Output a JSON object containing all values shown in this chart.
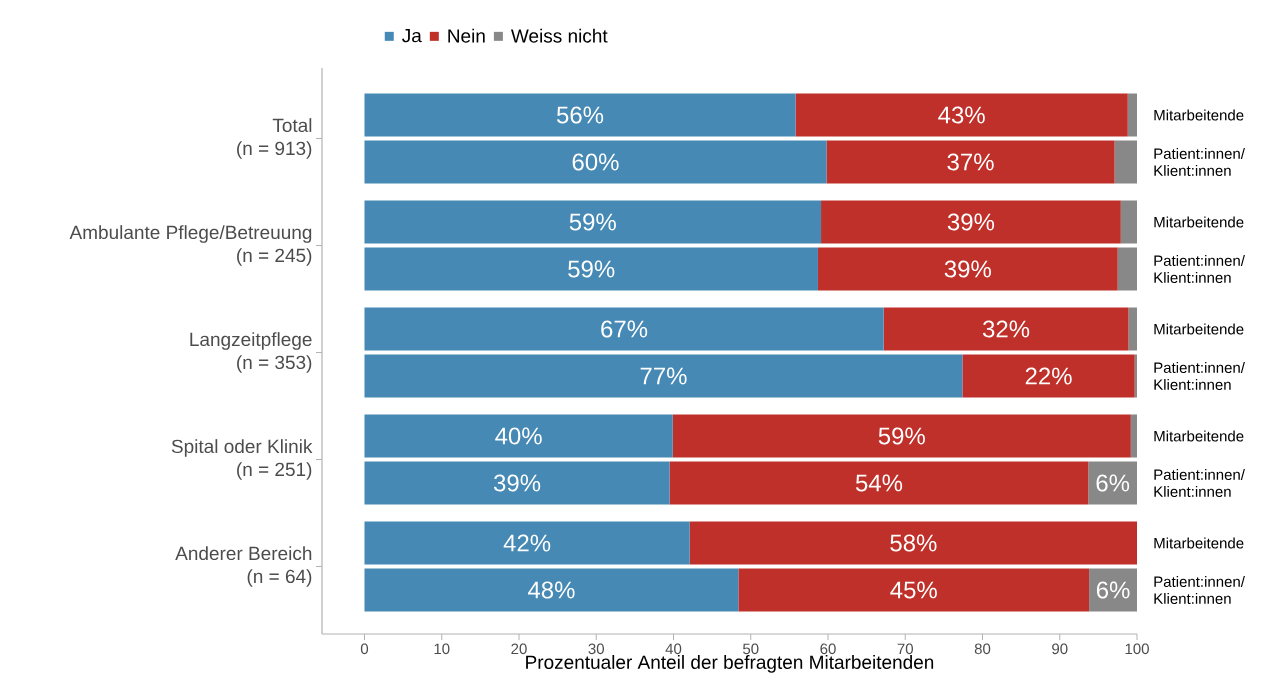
{
  "chart_data": {
    "type": "bar",
    "orientation": "horizontal",
    "stacked": true,
    "categories": [
      "Mitarbeitende",
      "Patient:innen/ Klient:innen",
      "Mitarbeitende",
      "Patient:innen/ Klient:innen",
      "Mitarbeitende",
      "Patient:innen/ Klient:innen",
      "Mitarbeitende",
      "Patient:innen/ Klient:innen",
      "Mitarbeitende",
      "Patient:innen/ Klient:innen"
    ],
    "series": [
      {
        "name": "Ja",
        "color": "#4689b4",
        "values": [
          55.8,
          59.8,
          59.1,
          58.7,
          67.2,
          77.4,
          39.9,
          39.5,
          42.1,
          48.4
        ],
        "value_labels": [
          "56%",
          "60%",
          "59%",
          "59%",
          "67%",
          "77%",
          "40%",
          "39%",
          "42%",
          "48%"
        ]
      },
      {
        "name": "Nein",
        "color": "#c0302a",
        "values": [
          43.0,
          37.3,
          38.8,
          38.8,
          31.7,
          22.3,
          59.3,
          54.2,
          57.9,
          45.4
        ],
        "value_labels": [
          "43%",
          "37%",
          "39%",
          "39%",
          "32%",
          "22%",
          "59%",
          "54%",
          "58%",
          "45%"
        ]
      },
      {
        "name": "Weiss nicht",
        "color": "#888888",
        "values": [
          1.2,
          2.9,
          2.1,
          2.5,
          1.1,
          0.3,
          0.8,
          6.3,
          0,
          6.2
        ],
        "value_labels": [
          null,
          null,
          null,
          null,
          null,
          null,
          null,
          "6%",
          null,
          "6%"
        ]
      }
    ],
    "xlabel": "Prozentualer Anteil der befragten Mitarbeitenden",
    "xlim": [
      -5.5,
      100
    ],
    "xticks": [
      0,
      10,
      20,
      30,
      40,
      50,
      60,
      70,
      80,
      90,
      100
    ],
    "annotations": [
      "Total",
      "(n = 913)",
      "Ambulante Pflege/Betreuung",
      "(n = 245)",
      "Langzeitpflege",
      "(n = 353)",
      "Spital oder Klinik",
      "(n = 251)",
      "Anderer Bereich",
      "(n = 64)"
    ],
    "legend": "top"
  }
}
